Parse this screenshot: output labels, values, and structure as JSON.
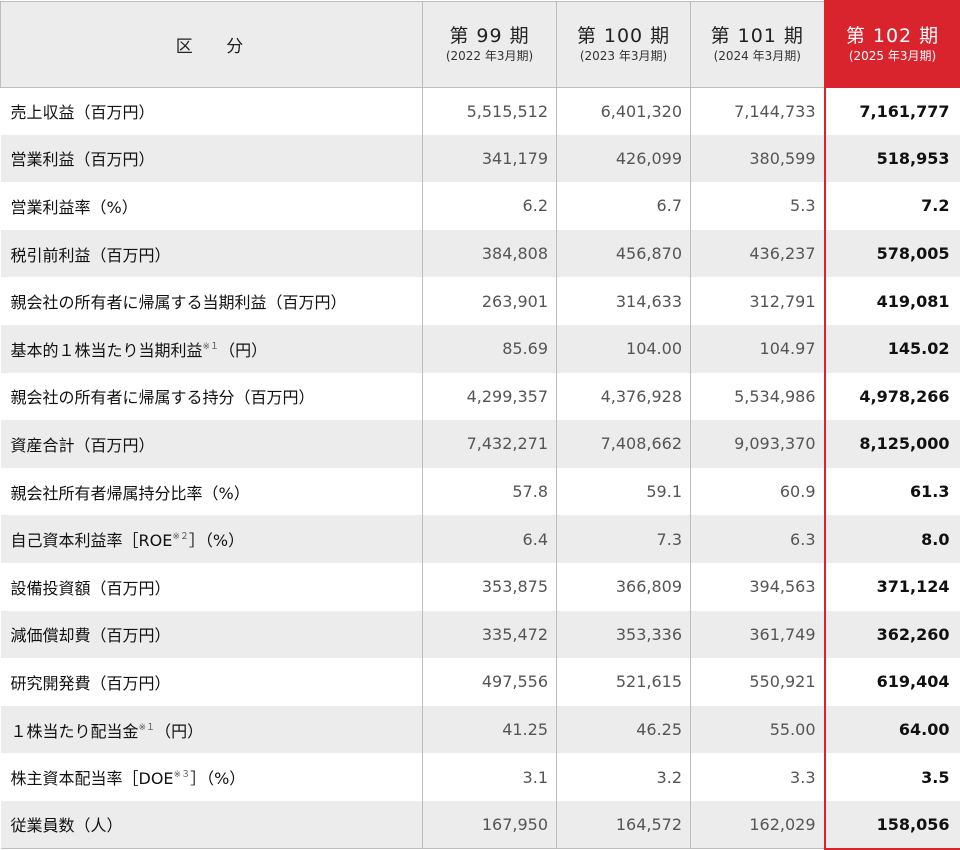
{
  "header": {
    "category": "区 分",
    "periods": [
      {
        "term": "第 99 期",
        "fiscal_year": "(2022 年3月期)"
      },
      {
        "term": "第 100 期",
        "fiscal_year": "(2023 年3月期)"
      },
      {
        "term": "第 101 期",
        "fiscal_year": "(2024 年3月期)"
      },
      {
        "term": "第 102 期",
        "fiscal_year": "(2025 年3月期)"
      }
    ]
  },
  "rows": [
    {
      "label": "売上収益（百万円）",
      "sup": "",
      "suffix": "",
      "values": [
        "5,515,512",
        "6,401,320",
        "7,144,733",
        "7,161,777"
      ]
    },
    {
      "label": "営業利益（百万円）",
      "sup": "",
      "suffix": "",
      "values": [
        "341,179",
        "426,099",
        "380,599",
        "518,953"
      ]
    },
    {
      "label": "営業利益率（%）",
      "sup": "",
      "suffix": "",
      "values": [
        "6.2",
        "6.7",
        "5.3",
        "7.2"
      ]
    },
    {
      "label": "税引前利益（百万円）",
      "sup": "",
      "suffix": "",
      "values": [
        "384,808",
        "456,870",
        "436,237",
        "578,005"
      ]
    },
    {
      "label": "親会社の所有者に帰属する当期利益（百万円）",
      "sup": "",
      "suffix": "",
      "values": [
        "263,901",
        "314,633",
        "312,791",
        "419,081"
      ]
    },
    {
      "label": "基本的１株当たり当期利益",
      "sup": "※１",
      "suffix": "（円）",
      "values": [
        "85.69",
        "104.00",
        "104.97",
        "145.02"
      ]
    },
    {
      "label": "親会社の所有者に帰属する持分（百万円）",
      "sup": "",
      "suffix": "",
      "values": [
        "4,299,357",
        "4,376,928",
        "5,534,986",
        "4,978,266"
      ]
    },
    {
      "label": "資産合計（百万円）",
      "sup": "",
      "suffix": "",
      "values": [
        "7,432,271",
        "7,408,662",
        "9,093,370",
        "8,125,000"
      ]
    },
    {
      "label": "親会社所有者帰属持分比率（%）",
      "sup": "",
      "suffix": "",
      "values": [
        "57.8",
        "59.1",
        "60.9",
        "61.3"
      ]
    },
    {
      "label": "自己資本利益率［ROE",
      "sup": "※２",
      "suffix": "］（%）",
      "values": [
        "6.4",
        "7.3",
        "6.3",
        "8.0"
      ]
    },
    {
      "label": "設備投資額（百万円）",
      "sup": "",
      "suffix": "",
      "values": [
        "353,875",
        "366,809",
        "394,563",
        "371,124"
      ]
    },
    {
      "label": "減価償却費（百万円）",
      "sup": "",
      "suffix": "",
      "values": [
        "335,472",
        "353,336",
        "361,749",
        "362,260"
      ]
    },
    {
      "label": "研究開発費（百万円）",
      "sup": "",
      "suffix": "",
      "values": [
        "497,556",
        "521,615",
        "550,921",
        "619,404"
      ]
    },
    {
      "label": "１株当たり配当金",
      "sup": "※１",
      "suffix": "（円）",
      "values": [
        "41.25",
        "46.25",
        "55.00",
        "64.00"
      ]
    },
    {
      "label": "株主資本配当率［DOE",
      "sup": "※３",
      "suffix": "］（%）",
      "values": [
        "3.1",
        "3.2",
        "3.3",
        "3.5"
      ]
    },
    {
      "label": "従業員数（人）",
      "sup": "",
      "suffix": "",
      "values": [
        "167,950",
        "164,572",
        "162,029",
        "158,056"
      ]
    }
  ],
  "colors": {
    "highlight": "#d9232d",
    "stripe": "#ececec"
  }
}
